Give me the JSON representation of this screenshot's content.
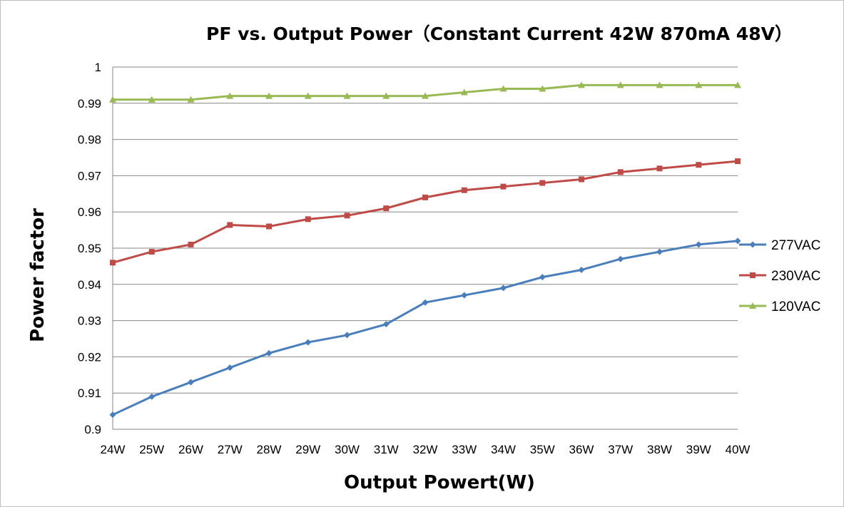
{
  "chart_data": {
    "type": "line",
    "title": "PF vs. Output Power（Constant Current 42W 870mA 48V）",
    "xlabel": "Output Powert(W)",
    "ylabel": "Power factor",
    "categories": [
      "24W",
      "25W",
      "26W",
      "27W",
      "28W",
      "29W",
      "30W",
      "31W",
      "32W",
      "33W",
      "34W",
      "35W",
      "36W",
      "37W",
      "38W",
      "39W",
      "40W"
    ],
    "yticks": [
      "0.9",
      "0.91",
      "0.92",
      "0.93",
      "0.94",
      "0.95",
      "0.96",
      "0.97",
      "0.98",
      "0.99",
      "1"
    ],
    "ylim": [
      0.9,
      1.0
    ],
    "grid": true,
    "legend_position": "right",
    "series": [
      {
        "name": "277VAC",
        "color": "#4a7ebb",
        "marker": "diamond",
        "values": [
          0.904,
          0.909,
          0.913,
          0.917,
          0.921,
          0.924,
          0.926,
          0.929,
          0.935,
          0.937,
          0.939,
          0.942,
          0.944,
          0.947,
          0.949,
          0.951,
          0.952
        ]
      },
      {
        "name": "230VAC",
        "color": "#be4b48",
        "marker": "square",
        "values": [
          0.946,
          0.949,
          0.951,
          0.9564,
          0.956,
          0.958,
          0.959,
          0.961,
          0.964,
          0.966,
          0.967,
          0.968,
          0.969,
          0.971,
          0.972,
          0.973,
          0.974
        ]
      },
      {
        "name": "120VAC",
        "color": "#98b954",
        "marker": "triangle",
        "values": [
          0.991,
          0.991,
          0.991,
          0.992,
          0.992,
          0.992,
          0.992,
          0.992,
          0.992,
          0.993,
          0.994,
          0.994,
          0.995,
          0.995,
          0.995,
          0.995,
          0.995
        ]
      }
    ]
  }
}
